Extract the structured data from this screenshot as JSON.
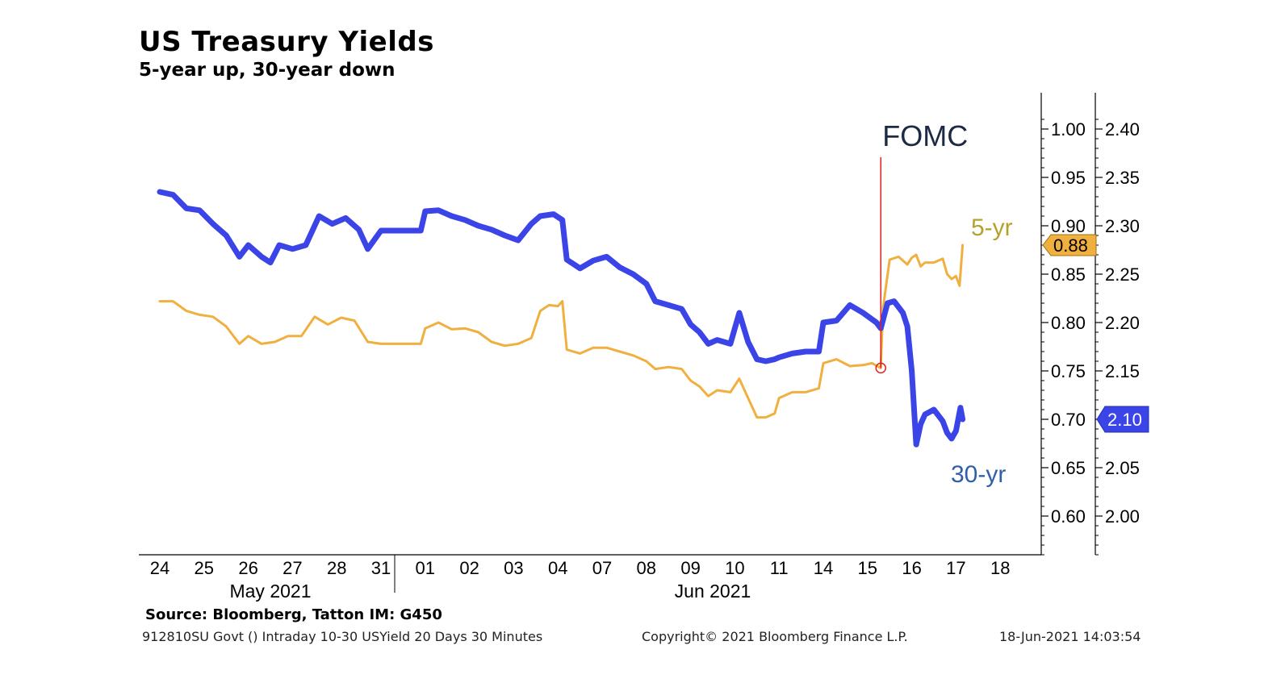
{
  "header": {
    "title": "US Treasury Yields",
    "subtitle": "5-year up, 30-year down"
  },
  "footer": {
    "source": "Source: Bloomberg, Tatton IM: G450",
    "query": "912810SU Govt () Intraday 10-30 USYield 20 Days 30 Minutes",
    "copyright": "Copyright© 2021 Bloomberg Finance L.P.",
    "timestamp": "18-Jun-2021 14:03:54"
  },
  "chart_data": {
    "type": "line",
    "title": "US Treasury Yields",
    "subtitle": "5-year up, 30-year down",
    "x_ticks": [
      "24",
      "25",
      "26",
      "27",
      "28",
      "31",
      "01",
      "02",
      "03",
      "04",
      "07",
      "08",
      "09",
      "10",
      "11",
      "14",
      "15",
      "16",
      "17",
      "18"
    ],
    "x_groups": [
      {
        "label": "May 2021",
        "from": 0,
        "to": 5
      },
      {
        "label": "Jun 2021",
        "from": 6,
        "to": 19
      }
    ],
    "axes": {
      "five_year": {
        "ticks": [
          1.0,
          0.95,
          0.9,
          0.85,
          0.8,
          0.75,
          0.7,
          0.65,
          0.6
        ],
        "labels": [
          "1.00",
          "0.95",
          "0.90",
          "0.85",
          "0.80",
          "0.75",
          "0.70",
          "0.65",
          "0.60"
        ]
      },
      "thirty_year": {
        "ticks": [
          2.4,
          2.35,
          2.3,
          2.25,
          2.2,
          2.15,
          2.1,
          2.05,
          2.0
        ],
        "labels": [
          "2.40",
          "2.35",
          "2.30",
          "2.25",
          "2.20",
          "2.15",
          "2.10",
          "2.05",
          "2.00"
        ]
      }
    },
    "series": [
      {
        "name": "5-yr",
        "color": "#f0b040",
        "axis": "five_year",
        "last_label": "0.88",
        "points": [
          [
            0.0,
            0.822
          ],
          [
            0.3,
            0.822
          ],
          [
            0.6,
            0.812
          ],
          [
            0.9,
            0.808
          ],
          [
            1.2,
            0.806
          ],
          [
            1.5,
            0.796
          ],
          [
            1.8,
            0.778
          ],
          [
            2.0,
            0.786
          ],
          [
            2.3,
            0.778
          ],
          [
            2.6,
            0.78
          ],
          [
            2.9,
            0.786
          ],
          [
            3.2,
            0.786
          ],
          [
            3.5,
            0.806
          ],
          [
            3.8,
            0.798
          ],
          [
            4.1,
            0.805
          ],
          [
            4.4,
            0.802
          ],
          [
            4.7,
            0.78
          ],
          [
            5.0,
            0.778
          ],
          [
            5.5,
            0.778
          ],
          [
            5.9,
            0.778
          ],
          [
            6.0,
            0.794
          ],
          [
            6.3,
            0.8
          ],
          [
            6.6,
            0.793
          ],
          [
            6.9,
            0.794
          ],
          [
            7.2,
            0.79
          ],
          [
            7.5,
            0.78
          ],
          [
            7.8,
            0.776
          ],
          [
            8.1,
            0.778
          ],
          [
            8.4,
            0.784
          ],
          [
            8.6,
            0.812
          ],
          [
            8.8,
            0.818
          ],
          [
            9.0,
            0.817
          ],
          [
            9.1,
            0.822
          ],
          [
            9.2,
            0.772
          ],
          [
            9.5,
            0.768
          ],
          [
            9.8,
            0.774
          ],
          [
            10.1,
            0.774
          ],
          [
            10.4,
            0.77
          ],
          [
            10.7,
            0.766
          ],
          [
            11.0,
            0.76
          ],
          [
            11.2,
            0.752
          ],
          [
            11.5,
            0.754
          ],
          [
            11.8,
            0.752
          ],
          [
            12.0,
            0.74
          ],
          [
            12.2,
            0.734
          ],
          [
            12.4,
            0.724
          ],
          [
            12.6,
            0.73
          ],
          [
            12.9,
            0.728
          ],
          [
            13.1,
            0.742
          ],
          [
            13.3,
            0.722
          ],
          [
            13.5,
            0.702
          ],
          [
            13.7,
            0.702
          ],
          [
            13.9,
            0.706
          ],
          [
            14.0,
            0.722
          ],
          [
            14.3,
            0.728
          ],
          [
            14.6,
            0.728
          ],
          [
            14.9,
            0.732
          ],
          [
            15.0,
            0.758
          ],
          [
            15.3,
            0.762
          ],
          [
            15.6,
            0.755
          ],
          [
            15.9,
            0.756
          ],
          [
            16.1,
            0.758
          ],
          [
            16.3,
            0.753
          ],
          [
            16.35,
            0.815
          ],
          [
            16.5,
            0.865
          ],
          [
            16.7,
            0.868
          ],
          [
            16.9,
            0.86
          ],
          [
            17.0,
            0.867
          ],
          [
            17.1,
            0.87
          ],
          [
            17.2,
            0.858
          ],
          [
            17.3,
            0.862
          ],
          [
            17.5,
            0.862
          ],
          [
            17.7,
            0.866
          ],
          [
            17.8,
            0.85
          ],
          [
            17.9,
            0.845
          ],
          [
            18.0,
            0.848
          ],
          [
            18.08,
            0.838
          ],
          [
            18.15,
            0.88
          ]
        ]
      },
      {
        "name": "30-yr",
        "color": "#3b44e6",
        "axis": "thirty_year",
        "last_label": "2.10",
        "points": [
          [
            0.0,
            2.335
          ],
          [
            0.3,
            2.332
          ],
          [
            0.6,
            2.318
          ],
          [
            0.9,
            2.316
          ],
          [
            1.2,
            2.302
          ],
          [
            1.5,
            2.29
          ],
          [
            1.8,
            2.268
          ],
          [
            2.0,
            2.28
          ],
          [
            2.3,
            2.268
          ],
          [
            2.5,
            2.262
          ],
          [
            2.7,
            2.28
          ],
          [
            3.0,
            2.276
          ],
          [
            3.3,
            2.28
          ],
          [
            3.6,
            2.31
          ],
          [
            3.9,
            2.302
          ],
          [
            4.2,
            2.308
          ],
          [
            4.5,
            2.296
          ],
          [
            4.7,
            2.276
          ],
          [
            5.0,
            2.295
          ],
          [
            5.5,
            2.295
          ],
          [
            5.9,
            2.295
          ],
          [
            6.0,
            2.315
          ],
          [
            6.3,
            2.316
          ],
          [
            6.6,
            2.31
          ],
          [
            6.9,
            2.306
          ],
          [
            7.2,
            2.3
          ],
          [
            7.5,
            2.296
          ],
          [
            7.8,
            2.29
          ],
          [
            8.1,
            2.285
          ],
          [
            8.4,
            2.302
          ],
          [
            8.6,
            2.31
          ],
          [
            8.9,
            2.312
          ],
          [
            9.1,
            2.306
          ],
          [
            9.2,
            2.265
          ],
          [
            9.5,
            2.256
          ],
          [
            9.8,
            2.264
          ],
          [
            10.1,
            2.268
          ],
          [
            10.4,
            2.257
          ],
          [
            10.7,
            2.25
          ],
          [
            11.0,
            2.24
          ],
          [
            11.2,
            2.222
          ],
          [
            11.5,
            2.218
          ],
          [
            11.8,
            2.214
          ],
          [
            12.0,
            2.198
          ],
          [
            12.2,
            2.19
          ],
          [
            12.4,
            2.178
          ],
          [
            12.6,
            2.182
          ],
          [
            12.9,
            2.178
          ],
          [
            13.1,
            2.21
          ],
          [
            13.3,
            2.18
          ],
          [
            13.5,
            2.162
          ],
          [
            13.7,
            2.16
          ],
          [
            13.9,
            2.162
          ],
          [
            14.0,
            2.164
          ],
          [
            14.3,
            2.168
          ],
          [
            14.6,
            2.17
          ],
          [
            14.9,
            2.17
          ],
          [
            15.0,
            2.2
          ],
          [
            15.3,
            2.202
          ],
          [
            15.6,
            2.218
          ],
          [
            15.9,
            2.21
          ],
          [
            16.2,
            2.2
          ],
          [
            16.3,
            2.194
          ],
          [
            16.45,
            2.22
          ],
          [
            16.6,
            2.222
          ],
          [
            16.8,
            2.21
          ],
          [
            16.9,
            2.196
          ],
          [
            17.0,
            2.15
          ],
          [
            17.1,
            2.074
          ],
          [
            17.2,
            2.095
          ],
          [
            17.3,
            2.105
          ],
          [
            17.5,
            2.11
          ],
          [
            17.7,
            2.098
          ],
          [
            17.8,
            2.086
          ],
          [
            17.9,
            2.08
          ],
          [
            18.0,
            2.088
          ],
          [
            18.1,
            2.112
          ],
          [
            18.15,
            2.1
          ]
        ]
      }
    ],
    "annotations": [
      {
        "text": "FOMC",
        "x": 16.3,
        "y_five_year": 0.753,
        "color": "#e02020"
      },
      {
        "text": "5-yr",
        "color": "#b5a22e"
      },
      {
        "text": "30-yr",
        "color": "#2f5fa8"
      }
    ]
  }
}
